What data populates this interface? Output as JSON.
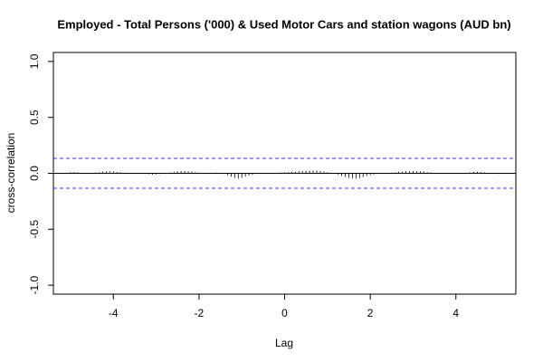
{
  "chart_data": {
    "type": "ccf",
    "title": "Employed - Total Persons ('000) & Used Motor Cars and station wagons (AUD bn)",
    "x_label": "Lag",
    "y_label": "cross-correlation",
    "xlim": [
      -5.4,
      5.4
    ],
    "ylim": [
      -1.08,
      1.08
    ],
    "xticks": [
      -4,
      -2,
      0,
      2,
      4
    ],
    "yticks": [
      {
        "value": -1,
        "label": "-1.0"
      },
      {
        "value": -0.5,
        "label": "-0.5"
      },
      {
        "value": 0,
        "label": "0.0"
      },
      {
        "value": 0.5,
        "label": "0.5"
      },
      {
        "value": 1,
        "label": "1.0"
      }
    ],
    "confidence_limits": [
      -0.133,
      0.133
    ],
    "ci_color": "#3333ff",
    "color": "#000000",
    "x": [
      -5,
      -4.917,
      -4.833,
      -4.75,
      -4.667,
      -4.583,
      -4.5,
      -4.417,
      -4.333,
      -4.25,
      -4.167,
      -4.083,
      -4,
      -3.917,
      -3.833,
      -3.75,
      -3.667,
      -3.583,
      -3.5,
      -3.417,
      -3.333,
      -3.25,
      -3.167,
      -3.083,
      -3,
      -2.917,
      -2.833,
      -2.75,
      -2.667,
      -2.583,
      -2.5,
      -2.417,
      -2.333,
      -2.25,
      -2.167,
      -2.083,
      -2,
      -1.917,
      -1.833,
      -1.75,
      -1.667,
      -1.583,
      -1.5,
      -1.417,
      -1.333,
      -1.25,
      -1.167,
      -1.083,
      -1,
      -0.917,
      -0.833,
      -0.75,
      -0.667,
      -0.583,
      -0.5,
      -0.417,
      -0.333,
      -0.25,
      -0.167,
      -0.083,
      0,
      0.083,
      0.167,
      0.25,
      0.333,
      0.417,
      0.5,
      0.583,
      0.667,
      0.75,
      0.833,
      0.917,
      1,
      1.083,
      1.167,
      1.25,
      1.333,
      1.417,
      1.5,
      1.583,
      1.667,
      1.75,
      1.833,
      1.917,
      2,
      2.083,
      2.167,
      2.25,
      2.333,
      2.417,
      2.5,
      2.583,
      2.667,
      2.75,
      2.833,
      2.917,
      3,
      3.083,
      3.167,
      3.25,
      3.333,
      3.417,
      3.5,
      3.583,
      3.667,
      3.75,
      3.833,
      3.917,
      4,
      4.083,
      4.167,
      4.25,
      4.333,
      4.417,
      4.5,
      4.583,
      4.667,
      4.75,
      4.833,
      4.917,
      5
    ],
    "values": [
      0.01,
      0.012,
      0.008,
      0.004,
      0.0,
      -0.003,
      0.002,
      0.006,
      0.01,
      0.014,
      0.017,
      0.018,
      0.016,
      0.013,
      0.009,
      0.006,
      0.004,
      0.002,
      0.001,
      0.0,
      -0.002,
      -0.005,
      -0.009,
      -0.012,
      -0.01,
      -0.006,
      -0.002,
      0.003,
      0.008,
      0.013,
      0.017,
      0.02,
      0.021,
      0.019,
      0.015,
      0.01,
      0.005,
      0.001,
      -0.002,
      -0.003,
      0.002,
      0.006,
      0.004,
      -0.005,
      -0.018,
      -0.03,
      -0.042,
      -0.048,
      -0.04,
      -0.03,
      -0.02,
      -0.012,
      -0.006,
      -0.002,
      0.0,
      0.002,
      0.003,
      0.004,
      0.005,
      0.007,
      0.009,
      0.011,
      0.013,
      0.015,
      0.018,
      0.02,
      0.022,
      0.024,
      0.025,
      0.024,
      0.021,
      0.016,
      0.01,
      0.004,
      -0.003,
      -0.012,
      -0.022,
      -0.032,
      -0.04,
      -0.046,
      -0.048,
      -0.043,
      -0.034,
      -0.024,
      -0.016,
      -0.01,
      -0.005,
      -0.002,
      0.0,
      0.002,
      0.005,
      0.009,
      0.013,
      0.016,
      0.018,
      0.02,
      0.021,
      0.02,
      0.018,
      0.015,
      0.011,
      0.007,
      0.004,
      0.002,
      0.001,
      0.0,
      -0.002,
      -0.004,
      -0.005,
      -0.003,
      0.0,
      0.004,
      0.008,
      0.012,
      0.014,
      0.013,
      0.009,
      0.004,
      0.0,
      -0.004,
      -0.006
    ]
  }
}
